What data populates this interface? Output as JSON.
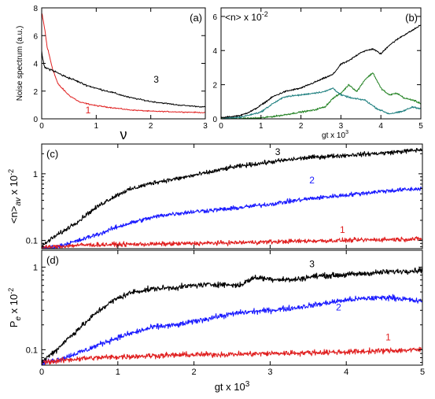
{
  "chart_data": [
    {
      "panel_label": "(a)",
      "type": "line",
      "xlabel": "ν",
      "ylabel": "Noise spectrum (a.u.)",
      "xlim": [
        0,
        3
      ],
      "ylim": [
        0,
        8
      ],
      "x_ticks": [
        0,
        1,
        2,
        3
      ],
      "y_ticks": [
        0,
        2,
        4,
        6,
        8
      ],
      "series": [
        {
          "name": "1",
          "color": "#e02020",
          "x": [
            0,
            0.05,
            0.1,
            0.2,
            0.3,
            0.5,
            0.7,
            1.0,
            1.3,
            1.6,
            2.0,
            2.5,
            3.0
          ],
          "y": [
            7.6,
            6.6,
            5.2,
            3.6,
            2.5,
            1.7,
            1.2,
            0.95,
            0.8,
            0.65,
            0.55,
            0.5,
            0.45
          ]
        },
        {
          "name": "3",
          "color": "#000000",
          "x": [
            0,
            0.05,
            0.2,
            0.4,
            0.6,
            0.8,
            1.0,
            1.3,
            1.6,
            2.0,
            2.5,
            3.0
          ],
          "y": [
            4.8,
            3.7,
            3.5,
            3.1,
            2.8,
            2.45,
            2.2,
            1.9,
            1.55,
            1.25,
            1.0,
            0.85
          ]
        }
      ],
      "annotations": [
        {
          "text": "1",
          "x": 0.85,
          "y": 0.4,
          "color": "#e02020"
        },
        {
          "text": "3",
          "x": 2.1,
          "y": 2.6,
          "color": "#000000"
        }
      ]
    },
    {
      "panel_label": "(b)",
      "type": "line",
      "title": "<n> x 10",
      "title_exponent": "-2",
      "xlabel": "gt x 10",
      "xlabel_exponent": "3",
      "xlim": [
        0,
        5
      ],
      "ylim": [
        0,
        6.5
      ],
      "x_ticks": [
        0,
        1,
        2,
        3,
        4,
        5
      ],
      "y_ticks": [
        0,
        2,
        4,
        6
      ],
      "series": [
        {
          "color": "#000000",
          "x": [
            0,
            0.5,
            0.8,
            1.0,
            1.3,
            1.6,
            2.0,
            2.2,
            2.5,
            2.8,
            3.0,
            3.2,
            3.5,
            3.8,
            4.0,
            4.2,
            4.5,
            4.8,
            5.0
          ],
          "y": [
            0.05,
            0.2,
            0.5,
            0.8,
            1.3,
            1.6,
            1.8,
            2.0,
            2.3,
            2.6,
            3.2,
            3.4,
            3.9,
            4.1,
            3.8,
            4.3,
            4.8,
            5.2,
            5.5
          ]
        },
        {
          "color": "#208020",
          "x": [
            0,
            1.0,
            1.5,
            2.0,
            2.3,
            2.6,
            2.8,
            3.0,
            3.2,
            3.4,
            3.6,
            3.8,
            4.0,
            4.2,
            4.4,
            4.6,
            4.8,
            5.0
          ],
          "y": [
            0,
            0.05,
            0.2,
            0.4,
            0.5,
            0.7,
            1.2,
            1.5,
            2.0,
            1.6,
            2.3,
            2.7,
            1.8,
            1.4,
            1.5,
            1.2,
            1.1,
            0.9
          ]
        },
        {
          "color": "#208080",
          "x": [
            0,
            0.5,
            1.0,
            1.3,
            1.6,
            2.0,
            2.3,
            2.6,
            2.8,
            3.0,
            3.3,
            3.6,
            3.9,
            4.2,
            4.5,
            4.8,
            5.0
          ],
          "y": [
            0,
            0.1,
            0.4,
            0.9,
            1.3,
            1.4,
            1.5,
            1.6,
            1.8,
            1.4,
            1.2,
            1.1,
            0.6,
            0.3,
            0.4,
            0.7,
            0.6
          ]
        }
      ]
    },
    {
      "panel_label": "(c)",
      "type": "line",
      "ylabel": "<n>",
      "ylabel_subscript": "av",
      "ylabel_suffix": " x 10",
      "ylabel_exponent": "-2",
      "y_scale": "log",
      "xlim": [
        0,
        5
      ],
      "ylim": [
        0.075,
        2.8
      ],
      "y_ticks": [
        0.1,
        1
      ],
      "y_tick_labels": [
        "0.1",
        "1"
      ],
      "x_ticks": [
        0,
        1,
        2,
        3,
        4,
        5
      ],
      "series": [
        {
          "name": "3",
          "color": "#000000",
          "x": [
            0,
            0.1,
            0.3,
            0.5,
            0.7,
            0.9,
            1.1,
            1.3,
            1.5,
            1.8,
            2.0,
            2.2,
            2.5,
            3.0,
            3.5,
            4.0,
            4.5,
            5.0
          ],
          "y": [
            0.08,
            0.1,
            0.14,
            0.2,
            0.3,
            0.42,
            0.55,
            0.65,
            0.75,
            0.85,
            0.95,
            1.05,
            1.25,
            1.5,
            1.75,
            1.9,
            2.05,
            2.3
          ]
        },
        {
          "name": "2",
          "color": "#1a1aff",
          "x": [
            0,
            0.2,
            0.5,
            0.8,
            1.0,
            1.3,
            1.6,
            2.0,
            2.5,
            3.0,
            3.5,
            4.0,
            4.5,
            5.0
          ],
          "y": [
            0.075,
            0.08,
            0.1,
            0.13,
            0.16,
            0.2,
            0.24,
            0.27,
            0.3,
            0.35,
            0.42,
            0.48,
            0.55,
            0.6
          ]
        },
        {
          "name": "1",
          "color": "#e02020",
          "x": [
            0,
            0.5,
            1.0,
            1.5,
            2.0,
            2.5,
            3.0,
            3.5,
            4.0,
            4.5,
            5.0
          ],
          "y": [
            0.078,
            0.085,
            0.087,
            0.088,
            0.09,
            0.092,
            0.095,
            0.098,
            0.1,
            0.103,
            0.105
          ]
        }
      ],
      "annotations": [
        {
          "text": "3",
          "x": 3.1,
          "y": 1.9,
          "color": "#000000"
        },
        {
          "text": "2",
          "x": 3.55,
          "y": 0.72,
          "color": "#1a1aff"
        },
        {
          "text": "1",
          "x": 3.95,
          "y": 0.13,
          "color": "#e02020"
        }
      ]
    },
    {
      "panel_label": "(d)",
      "type": "line",
      "ylabel": "P",
      "ylabel_subscript": "e",
      "ylabel_suffix": " x 10",
      "ylabel_exponent": "-2",
      "xlabel": "gt x 10",
      "xlabel_exponent": "3",
      "y_scale": "log",
      "xlim": [
        0,
        5
      ],
      "ylim": [
        0.065,
        1.6
      ],
      "y_ticks": [
        0.1,
        1
      ],
      "y_tick_labels": [
        "0.1",
        "1"
      ],
      "x_ticks": [
        0,
        1,
        2,
        3,
        4,
        5
      ],
      "x_tick_labels": [
        "0",
        "1",
        "2",
        "3",
        "4",
        "5"
      ],
      "series": [
        {
          "name": "3",
          "color": "#000000",
          "x": [
            0,
            0.2,
            0.4,
            0.6,
            0.8,
            1.0,
            1.2,
            1.5,
            1.8,
            2.0,
            2.3,
            2.6,
            2.8,
            3.0,
            3.3,
            3.6,
            3.9,
            4.2,
            4.5,
            4.8,
            5.0
          ],
          "y": [
            0.07,
            0.1,
            0.15,
            0.22,
            0.32,
            0.42,
            0.5,
            0.55,
            0.57,
            0.6,
            0.62,
            0.6,
            0.75,
            0.72,
            0.7,
            0.78,
            0.8,
            0.83,
            0.87,
            0.9,
            0.92
          ]
        },
        {
          "name": "2",
          "color": "#1a1aff",
          "x": [
            0,
            0.3,
            0.6,
            0.9,
            1.2,
            1.5,
            1.8,
            2.0,
            2.3,
            2.6,
            3.0,
            3.3,
            3.6,
            4.0,
            4.3,
            4.6,
            5.0
          ],
          "y": [
            0.068,
            0.08,
            0.1,
            0.13,
            0.16,
            0.19,
            0.2,
            0.22,
            0.25,
            0.28,
            0.3,
            0.32,
            0.35,
            0.4,
            0.42,
            0.43,
            0.38
          ]
        },
        {
          "name": "1",
          "color": "#e02020",
          "x": [
            0,
            0.5,
            1.0,
            1.5,
            2.0,
            2.5,
            3.0,
            3.5,
            4.0,
            4.5,
            5.0
          ],
          "y": [
            0.07,
            0.078,
            0.082,
            0.085,
            0.087,
            0.088,
            0.09,
            0.092,
            0.094,
            0.097,
            0.1
          ]
        }
      ],
      "annotations": [
        {
          "text": "3",
          "x": 3.55,
          "y": 1.0,
          "color": "#000000"
        },
        {
          "text": "2",
          "x": 3.9,
          "y": 0.3,
          "color": "#1a1aff"
        },
        {
          "text": "1",
          "x": 4.55,
          "y": 0.13,
          "color": "#e02020"
        }
      ]
    }
  ]
}
